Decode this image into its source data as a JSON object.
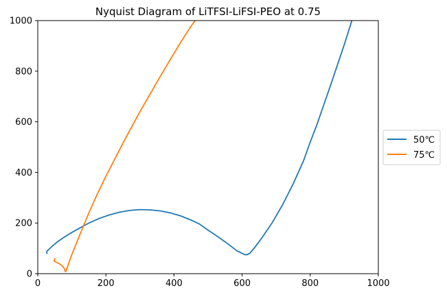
{
  "chart_data": {
    "type": "line",
    "title": "Nyquist Diagram of LiTFSI-LiFSI-PEO at 0.75",
    "xlabel": "",
    "ylabel": "",
    "xlim": [
      0,
      1000
    ],
    "ylim": [
      0,
      1000
    ],
    "xticks": [
      0,
      200,
      400,
      600,
      800,
      1000
    ],
    "yticks": [
      0,
      200,
      400,
      600,
      800,
      1000
    ],
    "grid": false,
    "legend_position": "center-right-outside",
    "series": [
      {
        "name": "50℃",
        "color": "#1f77b4",
        "points": [
          [
            27,
            80
          ],
          [
            26,
            84
          ],
          [
            28,
            90
          ],
          [
            32,
            95
          ],
          [
            38,
            103
          ],
          [
            46,
            113
          ],
          [
            58,
            126
          ],
          [
            75,
            142
          ],
          [
            95,
            159
          ],
          [
            120,
            178
          ],
          [
            150,
            200
          ],
          [
            180,
            218
          ],
          [
            210,
            232
          ],
          [
            240,
            243
          ],
          [
            270,
            250
          ],
          [
            300,
            253
          ],
          [
            330,
            252
          ],
          [
            360,
            248
          ],
          [
            390,
            240
          ],
          [
            420,
            228
          ],
          [
            450,
            212
          ],
          [
            475,
            196
          ],
          [
            500,
            172
          ],
          [
            530,
            145
          ],
          [
            560,
            116
          ],
          [
            585,
            90
          ],
          [
            595,
            84
          ],
          [
            600,
            80
          ],
          [
            608,
            75
          ],
          [
            615,
            75
          ],
          [
            622,
            80
          ],
          [
            635,
            100
          ],
          [
            660,
            145
          ],
          [
            690,
            205
          ],
          [
            720,
            275
          ],
          [
            750,
            355
          ],
          [
            780,
            445
          ],
          [
            800,
            520
          ],
          [
            820,
            590
          ],
          [
            840,
            668
          ],
          [
            860,
            745
          ],
          [
            880,
            825
          ],
          [
            900,
            905
          ],
          [
            920,
            990
          ],
          [
            922,
            1000
          ]
        ]
      },
      {
        "name": "75℃",
        "color": "#ff7f0e",
        "points": [
          [
            50,
            60
          ],
          [
            48,
            50
          ],
          [
            55,
            45
          ],
          [
            65,
            38
          ],
          [
            72,
            30
          ],
          [
            78,
            20
          ],
          [
            80,
            10
          ],
          [
            82,
            8
          ],
          [
            88,
            30
          ],
          [
            100,
            75
          ],
          [
            115,
            125
          ],
          [
            130,
            175
          ],
          [
            150,
            240
          ],
          [
            175,
            315
          ],
          [
            200,
            385
          ],
          [
            225,
            450
          ],
          [
            250,
            515
          ],
          [
            275,
            578
          ],
          [
            300,
            640
          ],
          [
            330,
            710
          ],
          [
            360,
            780
          ],
          [
            390,
            848
          ],
          [
            420,
            915
          ],
          [
            450,
            978
          ],
          [
            462,
            1000
          ]
        ]
      }
    ]
  }
}
